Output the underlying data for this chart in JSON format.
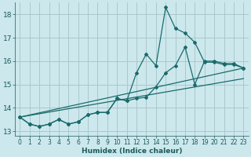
{
  "xlabel": "Humidex (Indice chaleur)",
  "background_color": "#cce8ed",
  "grid_color": "#aac8cc",
  "line_color": "#1a6b6b",
  "xlim": [
    -0.5,
    23.5
  ],
  "ylim": [
    12.8,
    18.5
  ],
  "xticks": [
    0,
    1,
    2,
    3,
    4,
    5,
    6,
    7,
    8,
    9,
    10,
    11,
    12,
    13,
    14,
    15,
    16,
    17,
    18,
    19,
    20,
    21,
    22,
    23
  ],
  "yticks": [
    13,
    14,
    15,
    16,
    17,
    18
  ],
  "line1_x": [
    0,
    1,
    2,
    3,
    4,
    5,
    6,
    7,
    8,
    9,
    10,
    11,
    12,
    13,
    14,
    15,
    16,
    17,
    18,
    19,
    20,
    21,
    22,
    23
  ],
  "line1_y": [
    13.6,
    13.3,
    13.2,
    13.3,
    13.5,
    13.3,
    13.4,
    13.7,
    13.8,
    13.8,
    14.4,
    14.3,
    15.5,
    16.3,
    15.8,
    18.3,
    17.4,
    17.2,
    16.8,
    15.95,
    15.95,
    15.85,
    15.85,
    15.7
  ],
  "line2_x": [
    0,
    1,
    2,
    3,
    4,
    5,
    6,
    7,
    8,
    9,
    10,
    11,
    12,
    13,
    14,
    15,
    16,
    17,
    18,
    19,
    20,
    21,
    22,
    23
  ],
  "line2_y": [
    13.6,
    13.3,
    13.2,
    13.3,
    13.5,
    13.3,
    13.4,
    13.7,
    13.8,
    13.8,
    14.4,
    14.3,
    14.4,
    14.45,
    14.9,
    15.5,
    15.8,
    16.6,
    15.0,
    16.0,
    16.0,
    15.9,
    15.9,
    15.7
  ],
  "line3_x": [
    0,
    23
  ],
  "line3_y": [
    13.6,
    15.7
  ],
  "line4_x": [
    0,
    23
  ],
  "line4_y": [
    13.6,
    15.25
  ]
}
